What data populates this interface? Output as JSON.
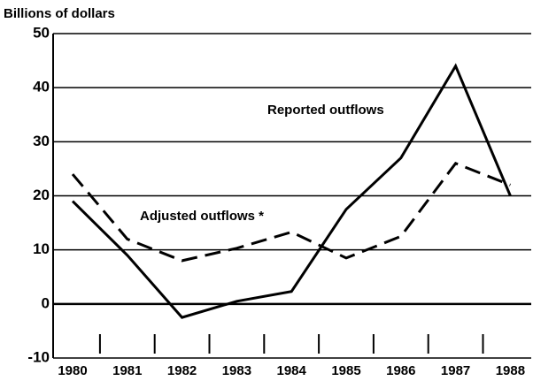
{
  "chart_data": {
    "type": "line",
    "y_axis_label": "Billions of dollars",
    "categories": [
      "1980",
      "1981",
      "1982",
      "1983",
      "1984",
      "1985",
      "1986",
      "1987",
      "1988"
    ],
    "series": [
      {
        "name": "Reported outflows",
        "color": "#000000",
        "dash": "solid",
        "values": [
          19,
          9,
          -2.5,
          0.5,
          2.3,
          17.5,
          27,
          44,
          20
        ]
      },
      {
        "name": "Adjusted outflows *",
        "color": "#000000",
        "dash": "dashed",
        "values": [
          24,
          12,
          8,
          10.3,
          13.3,
          8.5,
          12.5,
          26,
          22
        ]
      }
    ],
    "ylim": [
      -10,
      50
    ],
    "yticks": [
      -10,
      0,
      10,
      20,
      30,
      40,
      50
    ],
    "grid": true
  }
}
